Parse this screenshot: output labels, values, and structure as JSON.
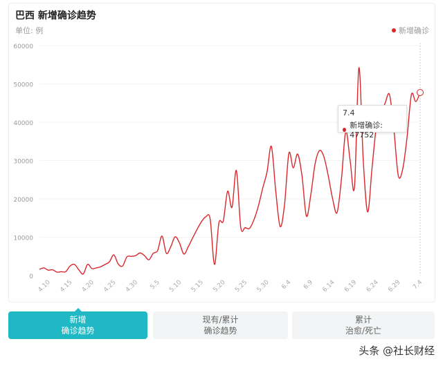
{
  "header": {
    "title": "巴西 新增确诊趋势",
    "unit": "单位: 例"
  },
  "colors": {
    "line": "#d9262c",
    "accent": "#1fb8c4",
    "tab_bg": "#f2f4f5"
  },
  "tooltip": {
    "date": "7.4",
    "label": "新增确诊: 47752"
  },
  "tabs": [
    {
      "line1": "新增",
      "line2": "确诊趋势",
      "active": true
    },
    {
      "line1": "现有/累计",
      "line2": "确诊趋势",
      "active": false
    },
    {
      "line1": "累计",
      "line2": "治愈/死亡",
      "active": false
    }
  ],
  "watermark": "头条 @社长财经",
  "chart_data": {
    "type": "line",
    "title": "巴西 新增确诊趋势",
    "ylabel": "单位: 例",
    "ylim": [
      0,
      60000
    ],
    "yticks": [
      "0",
      "10000",
      "20000",
      "30000",
      "40000",
      "50000",
      "60000"
    ],
    "xticks": [
      "4.10",
      "4.15",
      "4.20",
      "4.25",
      "4.30",
      "5.5",
      "5.10",
      "5.15",
      "5.20",
      "5.25",
      "5.30",
      "6.4",
      "6.9",
      "6.14",
      "6.19",
      "6.24",
      "6.29",
      "7.4"
    ],
    "grid": true,
    "legend": "top-right",
    "categories": [
      "4.8",
      "4.9",
      "4.10",
      "4.11",
      "4.12",
      "4.13",
      "4.14",
      "4.15",
      "4.16",
      "4.17",
      "4.18",
      "4.19",
      "4.20",
      "4.21",
      "4.22",
      "4.23",
      "4.24",
      "4.25",
      "4.26",
      "4.27",
      "4.28",
      "4.29",
      "4.30",
      "5.1",
      "5.2",
      "5.3",
      "5.4",
      "5.5",
      "5.6",
      "5.7",
      "5.8",
      "5.9",
      "5.10",
      "5.11",
      "5.12",
      "5.13",
      "5.14",
      "5.15",
      "5.16",
      "5.17",
      "5.18",
      "5.19",
      "5.20",
      "5.21",
      "5.22",
      "5.23",
      "5.24",
      "5.25",
      "5.26",
      "5.27",
      "5.28",
      "5.29",
      "5.30",
      "5.31",
      "6.1",
      "6.2",
      "6.3",
      "6.4",
      "6.5",
      "6.6",
      "6.7",
      "6.8",
      "6.9",
      "6.10",
      "6.11",
      "6.12",
      "6.13",
      "6.14",
      "6.15",
      "6.16",
      "6.17",
      "6.18",
      "6.19",
      "6.20",
      "6.21",
      "6.22",
      "6.23",
      "6.24",
      "6.25",
      "6.26",
      "6.27",
      "6.28",
      "6.29",
      "6.30",
      "7.1",
      "7.2",
      "7.3",
      "7.4"
    ],
    "series": [
      {
        "name": "新增确诊",
        "values": [
          1600,
          2000,
          1400,
          1500,
          900,
          1000,
          1000,
          2500,
          2900,
          1500,
          400,
          2900,
          1800,
          2000,
          2300,
          2900,
          3600,
          5400,
          3000,
          2500,
          4900,
          5000,
          5200,
          5900,
          5200,
          4100,
          5800,
          6500,
          10300,
          5800,
          7500,
          10100,
          8500,
          5600,
          7500,
          9800,
          12000,
          14000,
          15300,
          14800,
          2900,
          13700,
          14200,
          22000,
          17800,
          27400,
          12600,
          12500,
          12300,
          14500,
          18000,
          22700,
          27000,
          33700,
          22000,
          12800,
          18400,
          31900,
          28100,
          31700,
          26000,
          15500,
          21000,
          29200,
          32600,
          31000,
          26000,
          20000,
          16400,
          25000,
          37600,
          30000,
          23200,
          54200,
          30000,
          16600,
          28000,
          38900,
          42000,
          45000,
          47200,
          38000,
          26100,
          27700,
          36000,
          47200,
          45400,
          47752
        ]
      }
    ]
  }
}
